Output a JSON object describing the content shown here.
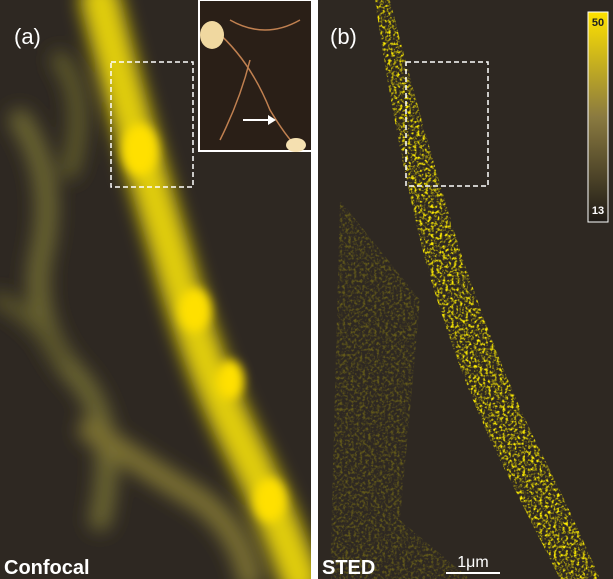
{
  "panels": [
    {
      "letter": "(a)",
      "caption": "Confocal"
    },
    {
      "letter": "(b)",
      "caption": "STED"
    }
  ],
  "scale_bar": "1μm",
  "colorbar": {
    "max": 50,
    "min": 13
  }
}
